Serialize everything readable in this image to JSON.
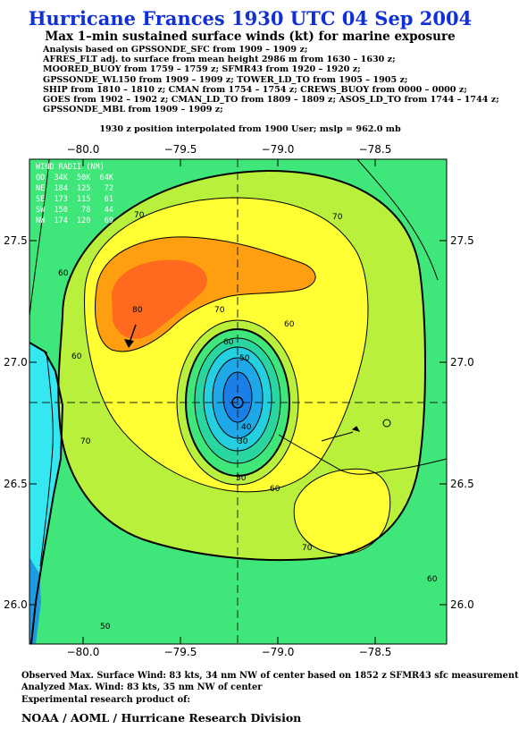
{
  "title": "Hurricane Frances 1930 UTC 04 Sep 2004",
  "subtitle": "Max 1–min sustained surface winds (kt) for marine exposure",
  "analysis_lines": [
    "Analysis based on  GPSSONDE_SFC from 1909 – 1909 z;",
    "AFRES_FLT adj. to surface from mean height 2986 m from 1630 – 1630 z;",
    "MOORED_BUOY from 1759 – 1759 z;  SFMR43 from 1920 – 1920 z;",
    "GPSSONDE_WL150 from 1909 – 1909 z;  TOWER_LD_TO from 1905 – 1905 z;",
    "SHIP from 1810 – 1810 z;  CMAN from 1754 – 1754 z;  CREWS_BUOY from 0000 – 0000 z;",
    "GOES from 1902 – 1902 z;  CMAN_LD_TO from 1809 – 1809 z;  ASOS_LD_TO from 1744 – 1744 z;",
    "GPSSONDE_MBL from 1909 – 1909 z;"
  ],
  "position_line": "1930 z position interpolated from 1900 User; mslp = 962.0 mb",
  "map": {
    "lon_ticks": [
      "−80.0",
      "−79.5",
      "−79.0",
      "−78.5"
    ],
    "lat_ticks": [
      "27.5",
      "27.0",
      "26.5",
      "26.0"
    ],
    "contour_labels": [
      "70",
      "60",
      "70",
      "80",
      "70",
      "60",
      "60",
      "50",
      "40",
      "30",
      "70",
      "60",
      "70",
      "50",
      "60",
      "60",
      "50"
    ]
  },
  "wind_radii": {
    "header": "WIND RADII (NM)",
    "columns": "QD  34K  50K  64K",
    "rows": [
      "NE  184  125   72",
      "SE  173  115   61",
      "SW  150   78   44",
      "NW  174  120   69"
    ]
  },
  "footer": {
    "observed": "Observed Max. Surface Wind: 83 kts, 34 nm NW of center based on 1852 z SFMR43 sfc measurement",
    "analyzed": "Analyzed Max. Wind: 83 kts, 35 nm NW of center",
    "experimental": "Experimental research product of:",
    "organization": "NOAA / AOML / Hurricane Research Division"
  },
  "colors": {
    "title": "#1230d8",
    "band_40": "#33e8f0",
    "band_50": "#3fe67a",
    "band_60": "#b8f03c",
    "band_70": "#ffff33",
    "band_80": "#ff9f10",
    "band_core": "#ff6a1e"
  }
}
